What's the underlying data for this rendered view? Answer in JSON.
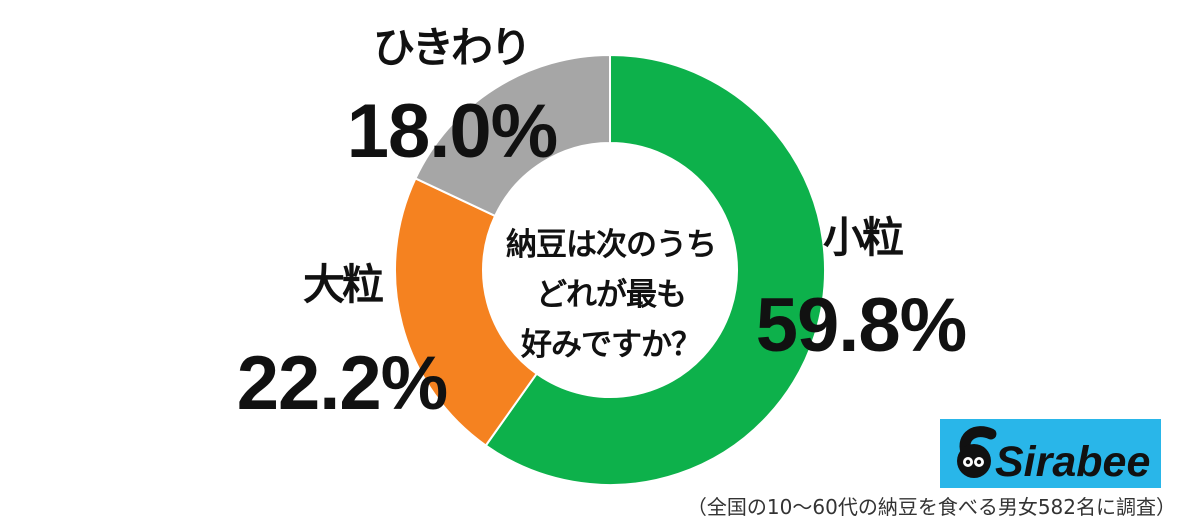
{
  "chart_data": {
    "type": "pie",
    "donut": true,
    "start": "top",
    "direction": "clockwise",
    "categories": [
      "小粒",
      "大粒",
      "ひきわり"
    ],
    "values": [
      59.8,
      22.2,
      18.0
    ],
    "value_labels": [
      "59.8%",
      "22.2%",
      "18.0%"
    ],
    "colors": [
      "#0db14b",
      "#f58220",
      "#a6a6a6"
    ],
    "center_text": [
      "納豆は次のうち",
      "どれが最も",
      "好みですか？"
    ]
  },
  "logo": {
    "text": "Sirabee",
    "background": "#29b6e9"
  },
  "source_note": "（全国の10～60代の納豆を食べる男女582名に調査）"
}
